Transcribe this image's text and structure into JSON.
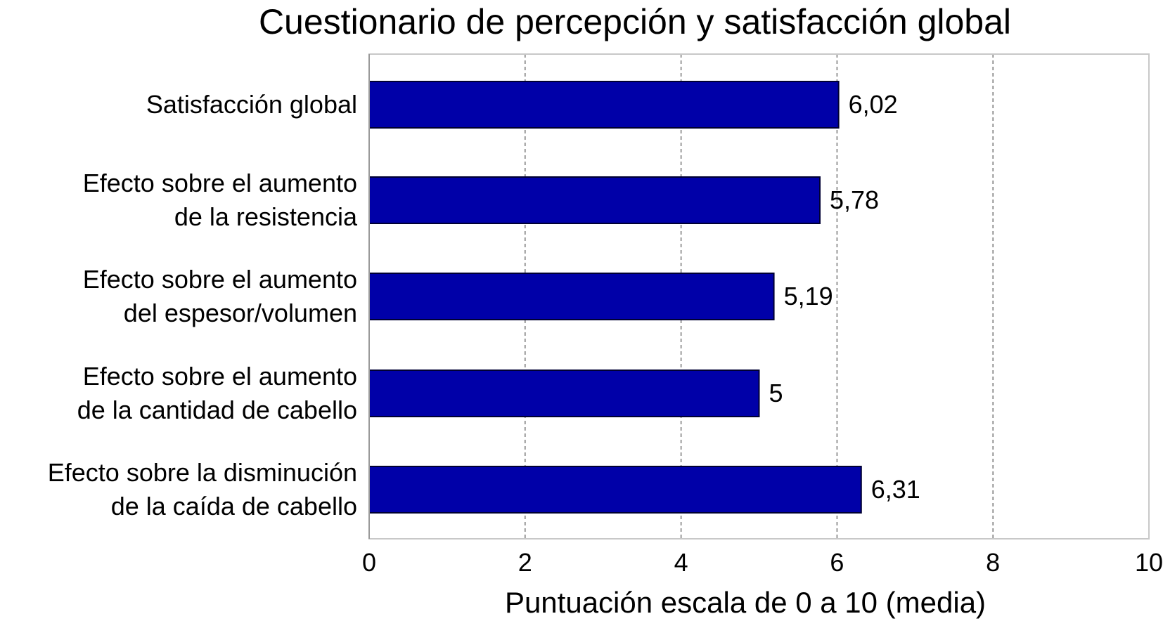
{
  "chart_data": {
    "type": "bar",
    "orientation": "horizontal",
    "title": "Cuestionario de percepción y satisfacción global",
    "xlabel": "Puntuación escala de 0 a 10 (media)",
    "ylabel": "",
    "xlim": [
      0,
      10
    ],
    "xticks": [
      "0",
      "2",
      "4",
      "6",
      "8",
      "10"
    ],
    "grid": "vertical dashed",
    "bar_color": "#0000A8",
    "categories": [
      [
        "Satisfacción global"
      ],
      [
        "Efecto sobre el aumento",
        "de la resistencia"
      ],
      [
        "Efecto sobre el aumento",
        "del espesor/volumen"
      ],
      [
        "Efecto sobre el aumento",
        "de la cantidad de cabello"
      ],
      [
        "Efecto sobre la disminución",
        "de la caída de cabello"
      ]
    ],
    "values": [
      6.02,
      5.78,
      5.19,
      5,
      6.31
    ],
    "value_labels": [
      "6,02",
      "5,78",
      "5,19",
      "5",
      "6,31"
    ]
  }
}
